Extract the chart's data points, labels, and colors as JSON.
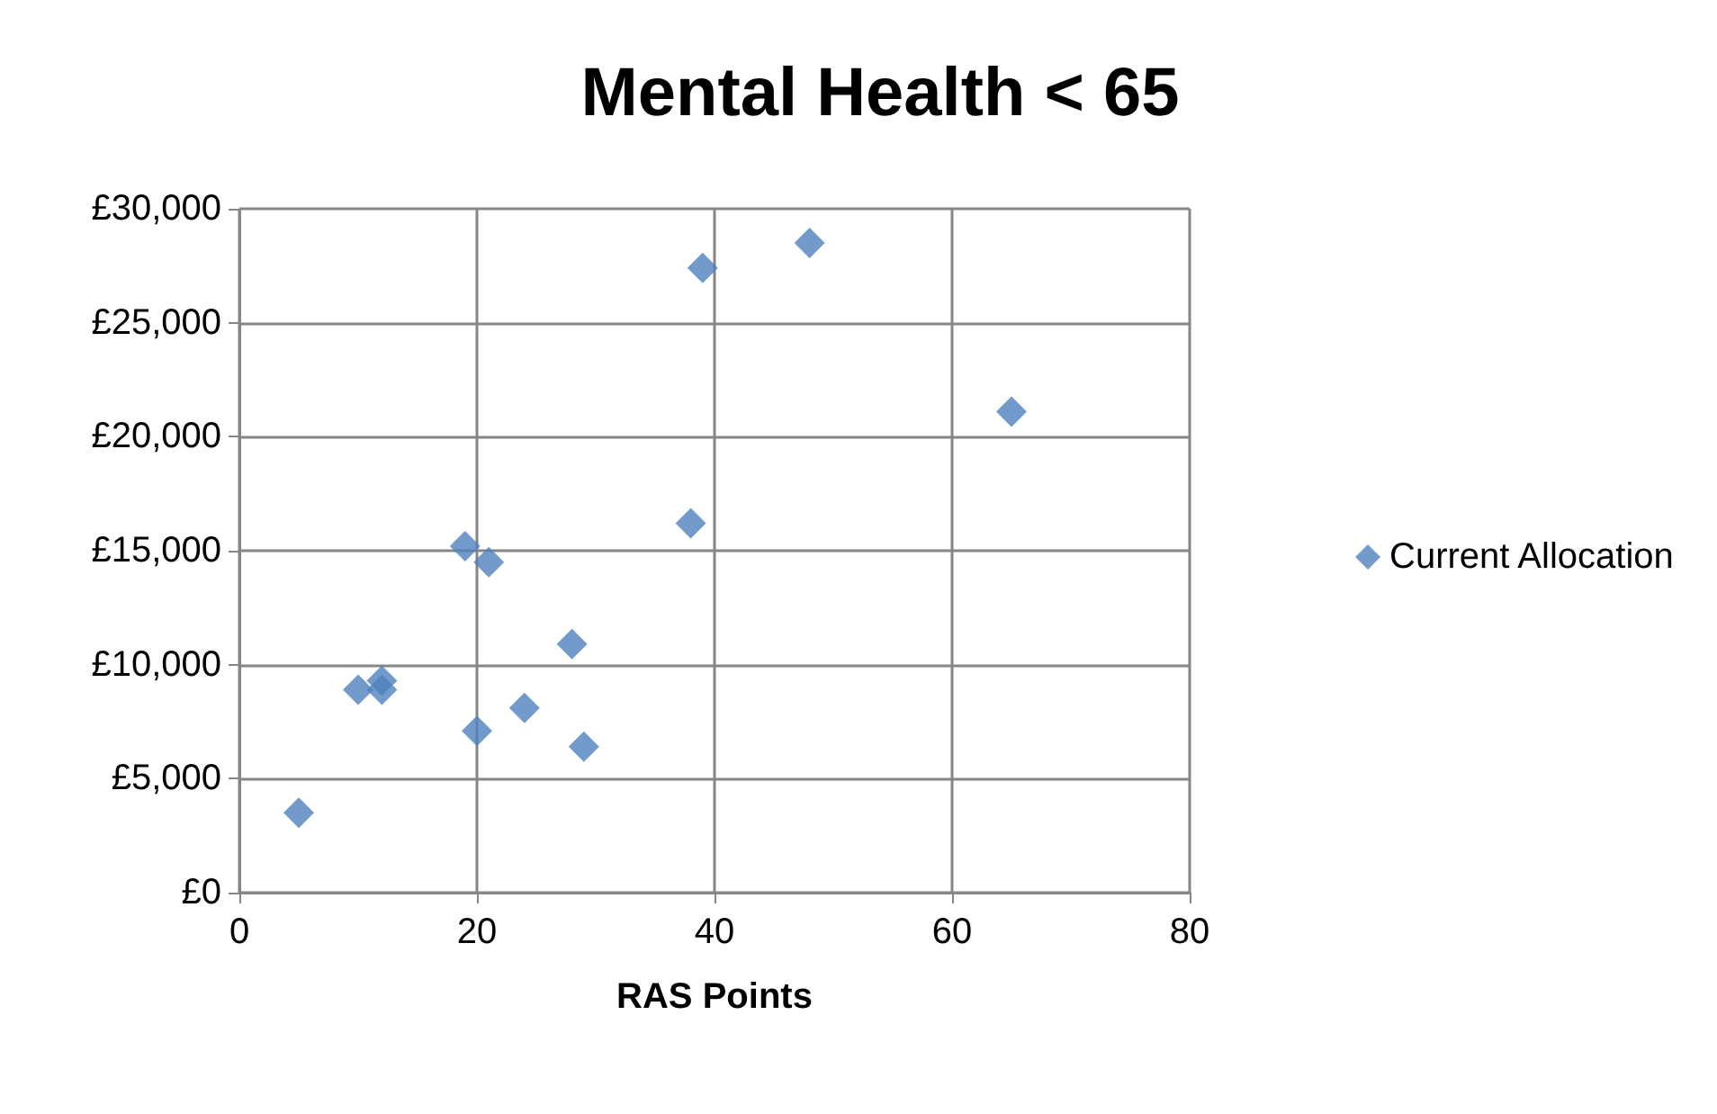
{
  "chart_data": {
    "type": "scatter",
    "title": "Mental Health < 65",
    "xlabel": "RAS Points",
    "x": [
      5,
      10,
      12,
      12,
      19,
      21,
      20,
      24,
      28,
      29,
      38,
      39,
      48,
      65
    ],
    "series": [
      {
        "name": "Current Allocation",
        "color": "#4f81bd",
        "values": [
          3500,
          8900,
          9300,
          8900,
          15200,
          14500,
          7100,
          8100,
          10900,
          6400,
          16200,
          27400,
          28500,
          21100
        ]
      }
    ],
    "xlim": [
      0,
      80
    ],
    "xticks": [
      0,
      20,
      40,
      60,
      80
    ],
    "ylim": [
      0,
      30000
    ],
    "yticks": [
      {
        "value": 0,
        "label": "£0"
      },
      {
        "value": 5000,
        "label": "£5,000"
      },
      {
        "value": 10000,
        "label": "£10,000"
      },
      {
        "value": 15000,
        "label": "£15,000"
      },
      {
        "value": 20000,
        "label": "£20,000"
      },
      {
        "value": 25000,
        "label": "£25,000"
      },
      {
        "value": 30000,
        "label": "£30,000"
      }
    ],
    "grid": true,
    "legend": "right",
    "marker": "diamond"
  }
}
